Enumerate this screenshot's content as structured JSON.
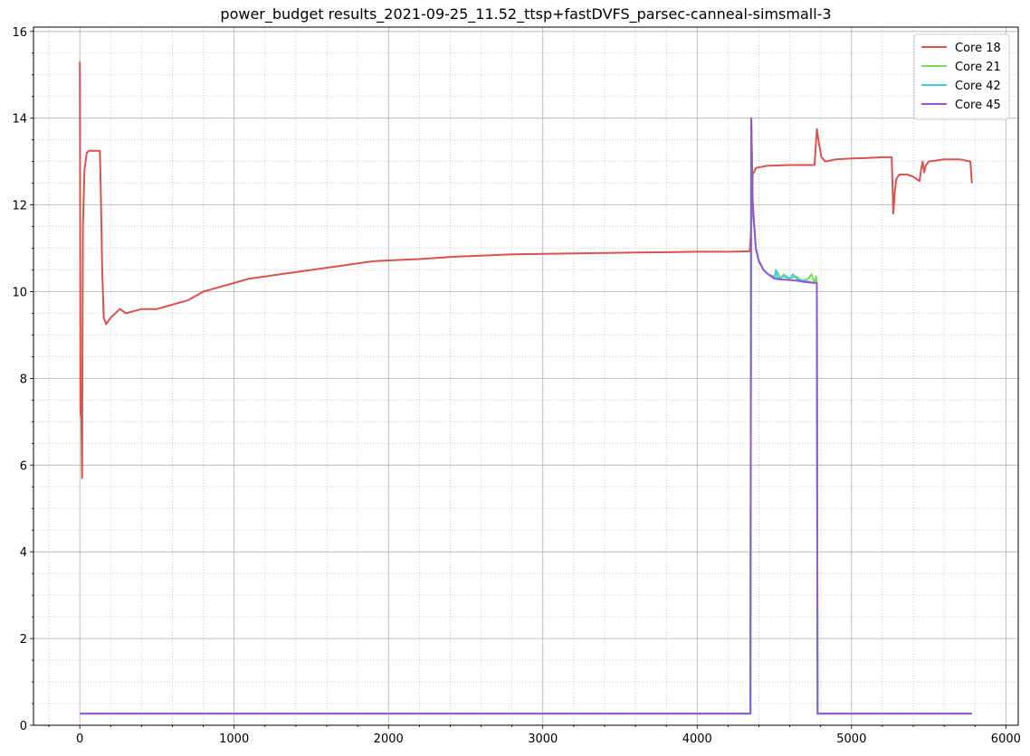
{
  "chart_data": {
    "type": "line",
    "title": "power_budget results_2021-09-25_11.52_ttsp+fastDVFS_parsec-canneal-simsmall-3",
    "xlabel": "",
    "ylabel": "",
    "xlim": [
      -300,
      6080
    ],
    "ylim": [
      0,
      16.1
    ],
    "xticks": [
      0,
      1000,
      2000,
      3000,
      4000,
      5000,
      6000
    ],
    "yticks": [
      0,
      2,
      4,
      6,
      8,
      10,
      12,
      14,
      16
    ],
    "x_minor_step": 200,
    "y_minor_step": 0.5,
    "grid": true,
    "legend_position": "top-right",
    "series": [
      {
        "name": "Core 18",
        "color": "#d9534f",
        "points": [
          [
            0,
            15.3
          ],
          [
            5,
            7.2
          ],
          [
            10,
            7.1
          ],
          [
            15,
            5.7
          ],
          [
            20,
            11.5
          ],
          [
            30,
            12.8
          ],
          [
            45,
            13.2
          ],
          [
            60,
            13.25
          ],
          [
            130,
            13.25
          ],
          [
            135,
            12.5
          ],
          [
            145,
            10.5
          ],
          [
            155,
            9.4
          ],
          [
            170,
            9.25
          ],
          [
            200,
            9.4
          ],
          [
            260,
            9.6
          ],
          [
            300,
            9.5
          ],
          [
            350,
            9.55
          ],
          [
            400,
            9.6
          ],
          [
            500,
            9.6
          ],
          [
            600,
            9.7
          ],
          [
            700,
            9.8
          ],
          [
            800,
            10.0
          ],
          [
            900,
            10.1
          ],
          [
            1000,
            10.2
          ],
          [
            1100,
            10.3
          ],
          [
            1200,
            10.35
          ],
          [
            1300,
            10.4
          ],
          [
            1400,
            10.45
          ],
          [
            1500,
            10.5
          ],
          [
            1600,
            10.55
          ],
          [
            1700,
            10.6
          ],
          [
            1800,
            10.65
          ],
          [
            1900,
            10.7
          ],
          [
            2000,
            10.72
          ],
          [
            2200,
            10.75
          ],
          [
            2400,
            10.8
          ],
          [
            2600,
            10.83
          ],
          [
            2800,
            10.86
          ],
          [
            3000,
            10.87
          ],
          [
            3200,
            10.88
          ],
          [
            3400,
            10.89
          ],
          [
            3600,
            10.9
          ],
          [
            3800,
            10.91
          ],
          [
            4000,
            10.92
          ],
          [
            4200,
            10.92
          ],
          [
            4340,
            10.93
          ],
          [
            4350,
            11.5
          ],
          [
            4360,
            12.7
          ],
          [
            4380,
            12.85
          ],
          [
            4450,
            12.9
          ],
          [
            4600,
            12.92
          ],
          [
            4760,
            12.92
          ],
          [
            4775,
            13.75
          ],
          [
            4790,
            13.4
          ],
          [
            4805,
            13.1
          ],
          [
            4830,
            13.0
          ],
          [
            4900,
            13.05
          ],
          [
            5000,
            13.07
          ],
          [
            5100,
            13.08
          ],
          [
            5200,
            13.1
          ],
          [
            5260,
            13.1
          ],
          [
            5270,
            11.8
          ],
          [
            5280,
            12.3
          ],
          [
            5290,
            12.6
          ],
          [
            5310,
            12.7
          ],
          [
            5360,
            12.7
          ],
          [
            5400,
            12.65
          ],
          [
            5440,
            12.55
          ],
          [
            5450,
            12.8
          ],
          [
            5460,
            13.0
          ],
          [
            5470,
            12.75
          ],
          [
            5480,
            12.9
          ],
          [
            5500,
            13.0
          ],
          [
            5600,
            13.05
          ],
          [
            5700,
            13.05
          ],
          [
            5770,
            13.0
          ],
          [
            5780,
            12.5
          ]
        ]
      },
      {
        "name": "Core 21",
        "color": "#77dd55",
        "points": [
          [
            0,
            0.27
          ],
          [
            4345,
            0.27
          ],
          [
            4350,
            14.0
          ],
          [
            4360,
            12.0
          ],
          [
            4380,
            11.0
          ],
          [
            4400,
            10.7
          ],
          [
            4430,
            10.5
          ],
          [
            4460,
            10.4
          ],
          [
            4500,
            10.35
          ],
          [
            4520,
            10.45
          ],
          [
            4540,
            10.3
          ],
          [
            4560,
            10.4
          ],
          [
            4600,
            10.3
          ],
          [
            4640,
            10.35
          ],
          [
            4680,
            10.25
          ],
          [
            4720,
            10.3
          ],
          [
            4740,
            10.4
          ],
          [
            4760,
            10.2
          ],
          [
            4770,
            10.35
          ],
          [
            4775,
            10.2
          ],
          [
            4780,
            0.27
          ],
          [
            5780,
            0.27
          ]
        ]
      },
      {
        "name": "Core 42",
        "color": "#44cce0",
        "points": [
          [
            0,
            0.27
          ],
          [
            4345,
            0.27
          ],
          [
            4350,
            14.0
          ],
          [
            4360,
            12.0
          ],
          [
            4380,
            11.0
          ],
          [
            4400,
            10.7
          ],
          [
            4430,
            10.5
          ],
          [
            4460,
            10.4
          ],
          [
            4500,
            10.3
          ],
          [
            4510,
            10.5
          ],
          [
            4520,
            10.3
          ],
          [
            4560,
            10.35
          ],
          [
            4600,
            10.3
          ],
          [
            4620,
            10.4
          ],
          [
            4650,
            10.28
          ],
          [
            4700,
            10.25
          ],
          [
            4760,
            10.2
          ],
          [
            4775,
            10.2
          ],
          [
            4780,
            0.27
          ],
          [
            5780,
            0.27
          ]
        ]
      },
      {
        "name": "Core 45",
        "color": "#9955cc",
        "points": [
          [
            0,
            0.27
          ],
          [
            4345,
            0.27
          ],
          [
            4350,
            14.0
          ],
          [
            4360,
            12.0
          ],
          [
            4380,
            11.0
          ],
          [
            4400,
            10.7
          ],
          [
            4430,
            10.5
          ],
          [
            4460,
            10.4
          ],
          [
            4500,
            10.3
          ],
          [
            4550,
            10.28
          ],
          [
            4600,
            10.27
          ],
          [
            4650,
            10.25
          ],
          [
            4700,
            10.22
          ],
          [
            4760,
            10.2
          ],
          [
            4775,
            10.2
          ],
          [
            4780,
            0.27
          ],
          [
            5780,
            0.27
          ]
        ]
      }
    ]
  }
}
